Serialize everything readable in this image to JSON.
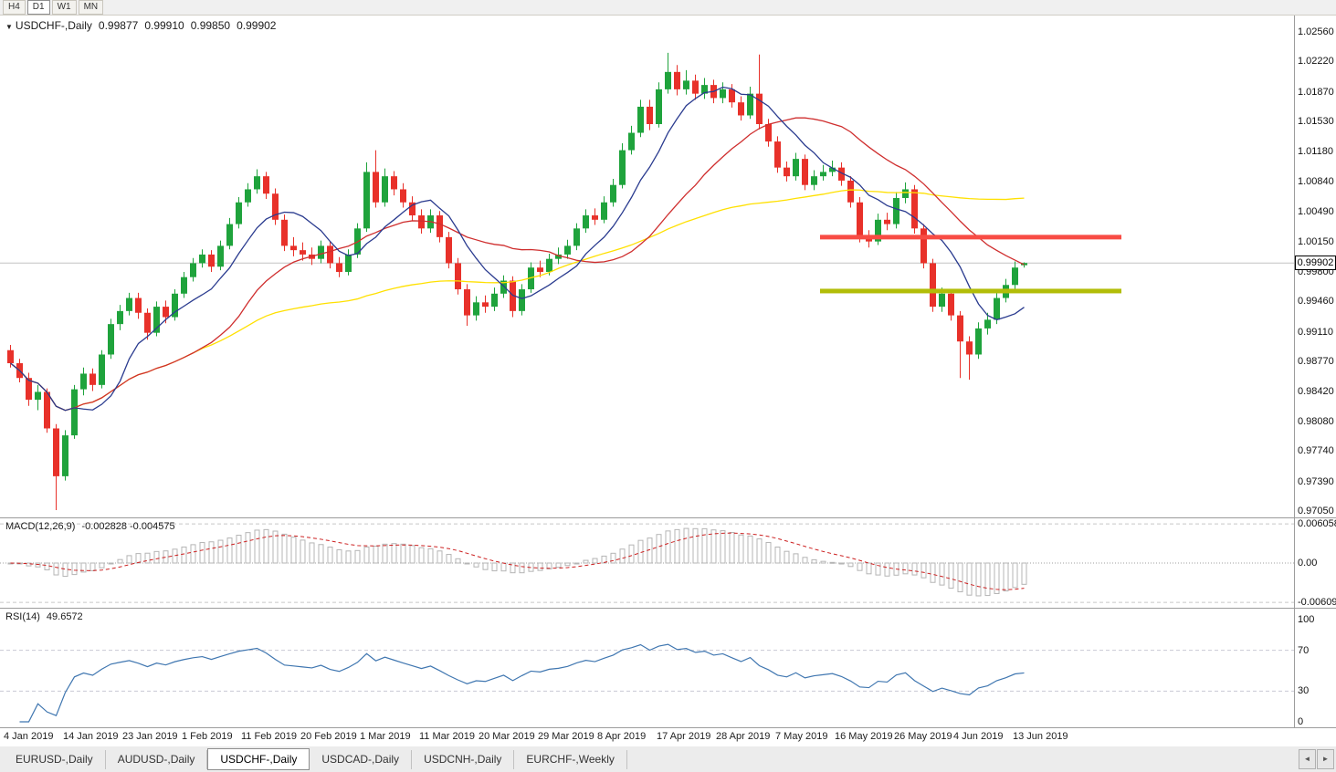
{
  "toolbar": {
    "timeframes": [
      {
        "label": "H4",
        "active": false
      },
      {
        "label": "D1",
        "active": true
      },
      {
        "label": "W1",
        "active": false
      },
      {
        "label": "MN",
        "active": false
      }
    ]
  },
  "chart_header": {
    "symbol": "USDCHF-,Daily",
    "open": "0.99877",
    "high": "0.99910",
    "low": "0.99850",
    "close": "0.99902"
  },
  "indicators": {
    "macd": {
      "label": "MACD(12,26,9)",
      "values": "-0.002828 -0.004575",
      "axis_ticks": [
        "0.006058",
        "0.00",
        "-0.006096"
      ]
    },
    "rsi": {
      "label": "RSI(14)",
      "value": "49.6572",
      "axis_ticks": [
        "100",
        "70",
        "30",
        "0"
      ]
    }
  },
  "price_axis": {
    "ticks": [
      "1.02560",
      "1.02220",
      "1.01870",
      "1.01530",
      "1.01180",
      "1.00840",
      "1.00490",
      "1.00150",
      "0.99800",
      "0.99460",
      "0.99110",
      "0.98770",
      "0.98420",
      "0.98080",
      "0.97740",
      "0.97390",
      "0.97050"
    ],
    "current_price": "0.99902"
  },
  "date_axis": {
    "labels": [
      {
        "text": "4 Jan 2019",
        "i": 0
      },
      {
        "text": "14 Jan 2019",
        "i": 6.5
      },
      {
        "text": "23 Jan 2019",
        "i": 13
      },
      {
        "text": "1 Feb 2019",
        "i": 19.5
      },
      {
        "text": "11 Feb 2019",
        "i": 26
      },
      {
        "text": "20 Feb 2019",
        "i": 32.5
      },
      {
        "text": "1 Mar 2019",
        "i": 39
      },
      {
        "text": "11 Mar 2019",
        "i": 45.5
      },
      {
        "text": "20 Mar 2019",
        "i": 52
      },
      {
        "text": "29 Mar 2019",
        "i": 58.5
      },
      {
        "text": "8 Apr 2019",
        "i": 65
      },
      {
        "text": "17 Apr 2019",
        "i": 71.5
      },
      {
        "text": "28 Apr 2019",
        "i": 78
      },
      {
        "text": "7 May 2019",
        "i": 84.5
      },
      {
        "text": "16 May 2019",
        "i": 91
      },
      {
        "text": "26 May 2019",
        "i": 97.5
      },
      {
        "text": "4 Jun 2019",
        "i": 104
      },
      {
        "text": "13 Jun 2019",
        "i": 110.5
      }
    ]
  },
  "tabs": [
    {
      "label": "EURUSD-,Daily",
      "active": false
    },
    {
      "label": "AUDUSD-,Daily",
      "active": false
    },
    {
      "label": "USDCHF-,Daily",
      "active": true
    },
    {
      "label": "USDCAD-,Daily",
      "active": false
    },
    {
      "label": "USDCNH-,Daily",
      "active": false
    },
    {
      "label": "EURCHF-,Weekly",
      "active": false
    }
  ],
  "icons": {
    "chart_marker": "▼",
    "scroll_left": "◄",
    "scroll_right": "►"
  },
  "colors": {
    "bull": "#1fa33c",
    "bear": "#e8312a",
    "resistance": "#f84c44",
    "support": "#b2bd08",
    "rsi_line": "#3f76b0",
    "macd_signal": "#cc2020",
    "macd_hist": "#b4b4b4",
    "current_price_line": "#c4c4c4",
    "grid_dash": "#cccccc"
  },
  "chart_data": {
    "type": "candlestick",
    "symbol": "USDCHF",
    "timeframe": "Daily",
    "title": "USDCHF-,Daily",
    "price_range": [
      0.9705,
      1.0256
    ],
    "moving_averages": [
      {
        "name": "fast",
        "period": 8,
        "color": "#2a3b8f"
      },
      {
        "name": "medium",
        "period": 21,
        "color": "#cf2e2e"
      },
      {
        "name": "slow",
        "period": 55,
        "color": "#ffe000"
      }
    ],
    "hlines": [
      {
        "name": "resistance",
        "price": 1.002,
        "color": "#f84c44",
        "width": 5,
        "from_index": 89,
        "to_index": 122
      },
      {
        "name": "support",
        "price": 0.9958,
        "color": "#b2bd08",
        "width": 5,
        "from_index": 89,
        "to_index": 122
      }
    ],
    "macd": {
      "fast": 12,
      "slow": 26,
      "signal": 9,
      "range": [
        -0.006096,
        0.006058
      ]
    },
    "rsi": {
      "period": 14,
      "levels": [
        30,
        70
      ],
      "range": [
        0,
        100
      ]
    },
    "candles": [
      [
        0.989,
        0.9896,
        0.987,
        0.9875
      ],
      [
        0.9875,
        0.988,
        0.9853,
        0.9858
      ],
      [
        0.9858,
        0.9864,
        0.9826,
        0.9833
      ],
      [
        0.9833,
        0.985,
        0.9821,
        0.9842
      ],
      [
        0.9842,
        0.9846,
        0.9795,
        0.98
      ],
      [
        0.98,
        0.9805,
        0.9706,
        0.9745
      ],
      [
        0.9745,
        0.9798,
        0.974,
        0.9792
      ],
      [
        0.9792,
        0.985,
        0.9788,
        0.9845
      ],
      [
        0.9845,
        0.987,
        0.9838,
        0.9863
      ],
      [
        0.9863,
        0.9869,
        0.9843,
        0.985
      ],
      [
        0.985,
        0.989,
        0.9846,
        0.9885
      ],
      [
        0.9885,
        0.9926,
        0.988,
        0.992
      ],
      [
        0.992,
        0.9942,
        0.9913,
        0.9935
      ],
      [
        0.9935,
        0.9956,
        0.993,
        0.995
      ],
      [
        0.995,
        0.9956,
        0.9926,
        0.9933
      ],
      [
        0.9933,
        0.9938,
        0.9902,
        0.991
      ],
      [
        0.991,
        0.9946,
        0.9906,
        0.994
      ],
      [
        0.994,
        0.9947,
        0.9921,
        0.9928
      ],
      [
        0.9928,
        0.996,
        0.9924,
        0.9955
      ],
      [
        0.9955,
        0.998,
        0.995,
        0.9974
      ],
      [
        0.9974,
        0.9996,
        0.9969,
        0.999
      ],
      [
        0.999,
        1.0006,
        0.9985,
        1.0
      ],
      [
        1.0,
        1.0005,
        0.998,
        0.9986
      ],
      [
        0.9986,
        1.0016,
        0.9982,
        1.001
      ],
      [
        1.001,
        1.0042,
        1.0006,
        1.0035
      ],
      [
        1.0035,
        1.0066,
        1.003,
        1.006
      ],
      [
        1.006,
        1.0082,
        1.0055,
        1.0075
      ],
      [
        1.0075,
        1.0098,
        1.007,
        1.009
      ],
      [
        1.009,
        1.0095,
        1.0064,
        1.007
      ],
      [
        1.007,
        1.0076,
        1.0034,
        1.004
      ],
      [
        1.004,
        1.0046,
        1.0004,
        1.001
      ],
      [
        1.001,
        1.002,
        0.9998,
        1.0005
      ],
      [
        1.0005,
        1.0014,
        0.9993,
        1.0
      ],
      [
        1.0,
        1.0008,
        0.9988,
        0.9995
      ],
      [
        0.9995,
        1.0016,
        0.999,
        1.001
      ],
      [
        1.001,
        1.0015,
        0.9984,
        0.999
      ],
      [
        0.999,
        0.9997,
        0.9974,
        0.998
      ],
      [
        0.998,
        1.0006,
        0.9976,
        1.0
      ],
      [
        1.0,
        1.0036,
        0.9996,
        1.003
      ],
      [
        1.003,
        1.0106,
        1.0026,
        1.0095
      ],
      [
        1.0095,
        1.012,
        1.0054,
        1.006
      ],
      [
        1.006,
        1.0099,
        1.0055,
        1.009
      ],
      [
        1.009,
        1.0096,
        1.0068,
        1.0075
      ],
      [
        1.0075,
        1.0082,
        1.0054,
        1.006
      ],
      [
        1.006,
        1.0067,
        1.0039,
        1.0045
      ],
      [
        1.0045,
        1.0052,
        1.0024,
        1.003
      ],
      [
        1.003,
        1.0052,
        1.0025,
        1.0045
      ],
      [
        1.0045,
        1.005,
        1.0014,
        1.002
      ],
      [
        1.002,
        1.0026,
        0.9984,
        0.999
      ],
      [
        0.999,
        0.9996,
        0.9954,
        0.996
      ],
      [
        0.996,
        0.9966,
        0.9918,
        0.993
      ],
      [
        0.993,
        0.9952,
        0.9924,
        0.9945
      ],
      [
        0.9945,
        0.9953,
        0.9933,
        0.994
      ],
      [
        0.994,
        0.9962,
        0.9935,
        0.9955
      ],
      [
        0.9955,
        0.9976,
        0.995,
        0.997
      ],
      [
        0.997,
        0.9975,
        0.9928,
        0.9935
      ],
      [
        0.9935,
        0.9966,
        0.993,
        0.996
      ],
      [
        0.996,
        0.9991,
        0.9956,
        0.9985
      ],
      [
        0.9985,
        0.9993,
        0.9974,
        0.998
      ],
      [
        0.998,
        1.0001,
        0.9976,
        0.9995
      ],
      [
        0.9995,
        1.0008,
        0.9989,
        1.0
      ],
      [
        1.0,
        1.0017,
        0.9995,
        1.001
      ],
      [
        1.001,
        1.0036,
        1.0005,
        1.003
      ],
      [
        1.003,
        1.0052,
        1.0025,
        1.0045
      ],
      [
        1.0045,
        1.0053,
        1.0034,
        1.004
      ],
      [
        1.004,
        1.0067,
        1.0036,
        1.006
      ],
      [
        1.006,
        1.0087,
        1.0055,
        1.008
      ],
      [
        1.008,
        1.0128,
        1.0076,
        1.012
      ],
      [
        1.012,
        1.0148,
        1.0115,
        1.014
      ],
      [
        1.014,
        1.0178,
        1.0135,
        1.017
      ],
      [
        1.017,
        1.0178,
        1.0143,
        1.015
      ],
      [
        1.015,
        1.0198,
        1.0146,
        1.019
      ],
      [
        1.019,
        1.0232,
        1.0185,
        1.021
      ],
      [
        1.021,
        1.0218,
        1.0183,
        1.019
      ],
      [
        1.019,
        1.0212,
        1.0184,
        1.02
      ],
      [
        1.02,
        1.0207,
        1.0178,
        1.0185
      ],
      [
        1.0185,
        1.0203,
        1.0179,
        1.0195
      ],
      [
        1.0195,
        1.0201,
        1.0174,
        1.018
      ],
      [
        1.018,
        1.0198,
        1.0174,
        1.019
      ],
      [
        1.019,
        1.0196,
        1.0169,
        1.0175
      ],
      [
        1.0175,
        1.0182,
        1.0154,
        1.016
      ],
      [
        1.016,
        1.0193,
        1.0156,
        1.0185
      ],
      [
        1.0185,
        1.023,
        1.0144,
        1.015
      ],
      [
        1.015,
        1.0156,
        1.0124,
        1.013
      ],
      [
        1.013,
        1.0136,
        1.0094,
        1.01
      ],
      [
        1.01,
        1.0107,
        1.0084,
        1.009
      ],
      [
        1.009,
        1.0117,
        1.0085,
        1.011
      ],
      [
        1.011,
        1.0115,
        1.0074,
        1.008
      ],
      [
        1.008,
        1.0097,
        1.0074,
        1.009
      ],
      [
        1.009,
        1.0103,
        1.0085,
        1.0095
      ],
      [
        1.0095,
        1.0108,
        1.009,
        1.01
      ],
      [
        1.01,
        1.0106,
        1.0079,
        1.0085
      ],
      [
        1.0085,
        1.009,
        1.0054,
        1.006
      ],
      [
        1.006,
        1.0066,
        1.0014,
        1.002
      ],
      [
        1.002,
        1.0028,
        1.0008,
        1.0015
      ],
      [
        1.0015,
        1.0047,
        1.0011,
        1.004
      ],
      [
        1.004,
        1.0048,
        1.0028,
        1.0035
      ],
      [
        1.0035,
        1.0072,
        1.003,
        1.0065
      ],
      [
        1.0065,
        1.0083,
        1.0059,
        1.0075
      ],
      [
        1.0075,
        1.008,
        1.0024,
        1.003
      ],
      [
        1.003,
        1.0035,
        0.9984,
        0.999
      ],
      [
        0.999,
        0.9995,
        0.9934,
        0.994
      ],
      [
        0.994,
        0.9962,
        0.9934,
        0.9955
      ],
      [
        0.9955,
        0.996,
        0.9924,
        0.993
      ],
      [
        0.993,
        0.9935,
        0.9858,
        0.99
      ],
      [
        0.99,
        0.9906,
        0.9856,
        0.9885
      ],
      [
        0.9885,
        0.9922,
        0.988,
        0.9915
      ],
      [
        0.9915,
        0.9933,
        0.9908,
        0.9925
      ],
      [
        0.9925,
        0.9957,
        0.992,
        0.995
      ],
      [
        0.995,
        0.9972,
        0.9945,
        0.9965
      ],
      [
        0.9965,
        0.9992,
        0.996,
        0.9985
      ],
      [
        0.99877,
        0.9991,
        0.9985,
        0.99902
      ]
    ]
  }
}
